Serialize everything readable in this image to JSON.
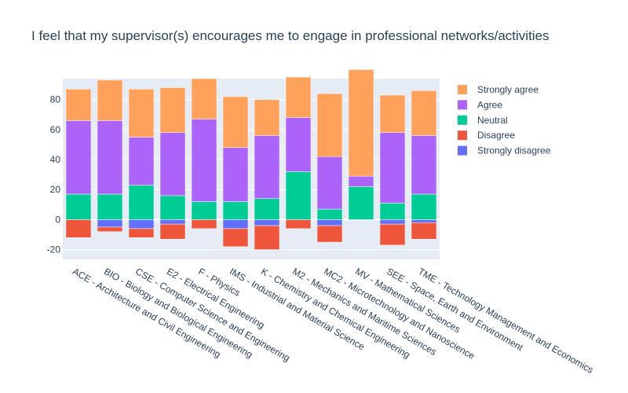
{
  "chart_data": {
    "type": "bar",
    "title": "I feel that my supervisor(s) encourages me to engage in professional networks/activities",
    "categories": [
      "ACE - Architecture and Civil Engineering",
      "BIO - Biology and Biological Engineering",
      "CSE - Computer Science and Engineering",
      "E2 - Electrical Engineering",
      "F - Physics",
      "IMS - Industrial and Material Science",
      "K - Chemistry and Chemical Engineering",
      "M2 - Mechanics and Maritime Sciences",
      "MC2 - Microtechnology and Nanoscience",
      "MV - Mathematical Sciences",
      "SEE - Space, Earth and Environment",
      "TME - Technology Management and Economics"
    ],
    "series": [
      {
        "name": "Strongly disagree",
        "color": "#636efa",
        "values": [
          0,
          -5,
          -6,
          -3,
          0,
          -6,
          -4,
          0,
          -4,
          0,
          -3,
          -2
        ]
      },
      {
        "name": "Disagree",
        "color": "#ef553b",
        "values": [
          -12,
          -3,
          -6,
          -10,
          -6,
          -12,
          -16,
          -6,
          -11,
          0,
          -14,
          -11
        ]
      },
      {
        "name": "Neutral",
        "color": "#00cc96",
        "values": [
          17,
          17,
          23,
          16,
          12,
          12,
          14,
          32,
          7,
          22,
          11,
          17
        ]
      },
      {
        "name": "Agree",
        "color": "#ab63fa",
        "values": [
          49,
          49,
          32,
          42,
          55,
          36,
          42,
          36,
          35,
          7,
          47,
          39
        ]
      },
      {
        "name": "Strongly agree",
        "color": "#ffa15a",
        "values": [
          21,
          27,
          32,
          30,
          27,
          34,
          24,
          27,
          42,
          71,
          25,
          30
        ]
      }
    ],
    "legend_order": [
      "Strongly agree",
      "Agree",
      "Neutral",
      "Disagree",
      "Strongly disagree"
    ],
    "yticks": [
      -20,
      0,
      20,
      40,
      60,
      80
    ],
    "ylim": [
      -26.5,
      94
    ],
    "legend_position": "right",
    "grid": true,
    "plot_background": "#e5ecf6"
  }
}
